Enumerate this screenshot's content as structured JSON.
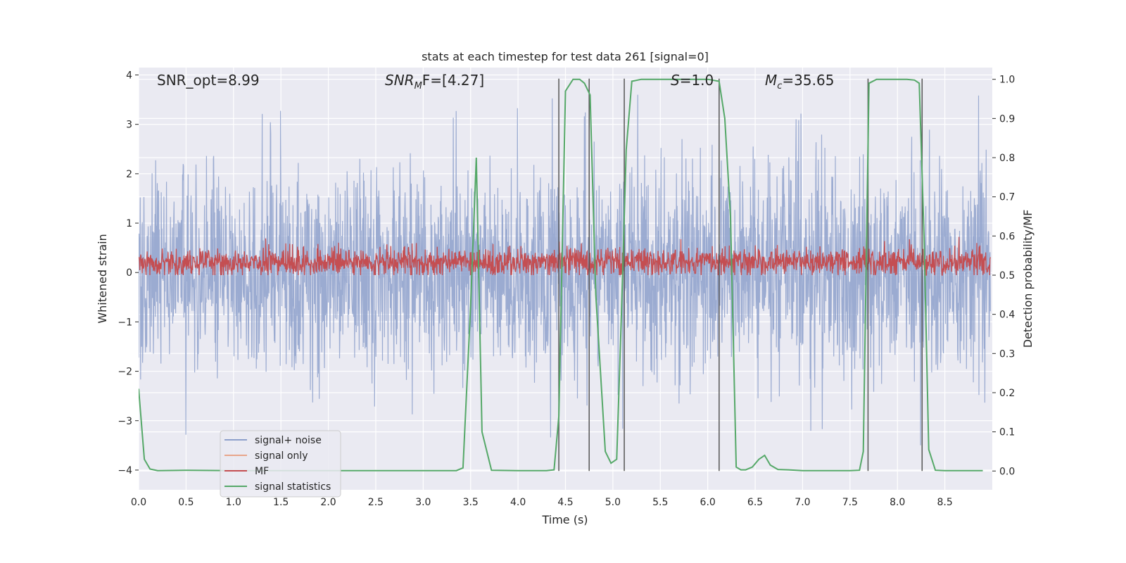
{
  "chart_data": {
    "type": "line",
    "title": "stats at each timestep for test data 261 [signal=0]",
    "xlabel": "Time (s)",
    "ylabel": "Whitened strain",
    "y2label": "Detection probability/MF",
    "xlim": [
      0.0,
      9.0
    ],
    "ylim": [
      -4.4,
      4.15
    ],
    "y2lim": [
      -0.048,
      1.03
    ],
    "xticks": [
      "0.0",
      "0.5",
      "1.0",
      "1.5",
      "2.0",
      "2.5",
      "3.0",
      "3.5",
      "4.0",
      "4.5",
      "5.0",
      "5.5",
      "6.0",
      "6.5",
      "7.0",
      "7.5",
      "8.0",
      "8.5"
    ],
    "yticks": [
      "4",
      "3",
      "2",
      "1",
      "0",
      "−1",
      "−2",
      "−3",
      "−4"
    ],
    "y2ticks": [
      "1.0",
      "0.9",
      "0.8",
      "0.7",
      "0.6",
      "0.5",
      "0.4",
      "0.3",
      "0.2",
      "0.1",
      "0.0"
    ],
    "annotations": [
      {
        "id": "snr-opt",
        "text": "SNR_opt=8.99"
      },
      {
        "id": "snr-mf",
        "base": "SNR",
        "sub": "M",
        "rest": "F=[4.27]"
      },
      {
        "id": "s-stat",
        "base": "S",
        "rest": "=1.0"
      },
      {
        "id": "mc",
        "base": "M",
        "sub": "c",
        "rest": "=35.65"
      }
    ],
    "legend": {
      "location": "lower-left",
      "entries": [
        {
          "label": "signal+ noise",
          "color": "#8da0cb"
        },
        {
          "label": "signal only",
          "color": "#e8a58a"
        },
        {
          "label": "MF",
          "color": "#c44e52"
        },
        {
          "label": "signal statistics",
          "color": "#55a868"
        }
      ]
    },
    "series": [
      {
        "name": "signal+ noise",
        "color": "#8da0cb",
        "kind": "noise",
        "description_range": [
          -3.5,
          3.6
        ]
      },
      {
        "name": "signal only",
        "color": "#e8a58a",
        "kind": "flat",
        "values_y": 0
      },
      {
        "name": "MF",
        "color": "#c44e52",
        "kind": "noise",
        "axis": "y2",
        "center": 0.53,
        "range": [
          0.5,
          0.62
        ]
      },
      {
        "name": "signal statistics",
        "color": "#55a868",
        "axis": "y2",
        "x": [
          0.0,
          0.06,
          0.12,
          0.2,
          0.5,
          1.0,
          2.0,
          3.0,
          3.35,
          3.42,
          3.5,
          3.56,
          3.62,
          3.72,
          4.0,
          4.3,
          4.38,
          4.43,
          4.5,
          4.58,
          4.65,
          4.7,
          4.76,
          4.82,
          4.92,
          4.98,
          5.04,
          5.09,
          5.14,
          5.2,
          5.3,
          5.5,
          6.0,
          6.12,
          6.18,
          6.24,
          6.3,
          6.35,
          6.4,
          6.47,
          6.54,
          6.6,
          6.66,
          6.74,
          6.85,
          7.0,
          7.5,
          7.6,
          7.64,
          7.7,
          7.78,
          7.9,
          8.1,
          8.18,
          8.23,
          8.28,
          8.33,
          8.4,
          8.5,
          8.9
        ],
        "y": [
          0.21,
          0.03,
          0.005,
          0.001,
          0.002,
          0.001,
          0.001,
          0.001,
          0.001,
          0.008,
          0.42,
          0.8,
          0.1,
          0.002,
          0.001,
          0.001,
          0.003,
          0.14,
          0.97,
          1.0,
          1.0,
          0.99,
          0.96,
          0.45,
          0.05,
          0.02,
          0.03,
          0.4,
          0.82,
          0.995,
          1.0,
          1.0,
          1.0,
          0.995,
          0.9,
          0.65,
          0.01,
          0.003,
          0.003,
          0.01,
          0.03,
          0.04,
          0.015,
          0.004,
          0.003,
          0.001,
          0.001,
          0.002,
          0.05,
          0.99,
          1.0,
          1.0,
          1.0,
          0.998,
          0.99,
          0.6,
          0.055,
          0.002,
          0.001,
          0.001
        ]
      }
    ],
    "vertical_lines_x": [
      4.43,
      4.75,
      5.12,
      6.12,
      7.69,
      8.26
    ]
  }
}
